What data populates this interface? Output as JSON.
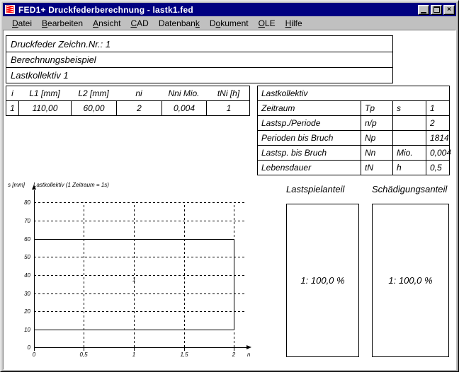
{
  "window": {
    "title": "FED1+   Druckfederberechnung  -  lastk1.fed",
    "close_glyph": "×",
    "icons": {
      "app": "spring-icon",
      "minimize": "minimize-icon",
      "maximize": "maximize-icon",
      "close": "close-icon"
    }
  },
  "menu": {
    "items": [
      {
        "label": "Datei",
        "underline": 0
      },
      {
        "label": "Bearbeiten",
        "underline": 0
      },
      {
        "label": "Ansicht",
        "underline": 0
      },
      {
        "label": "CAD",
        "underline": 0
      },
      {
        "label": "Datenbank",
        "underline": 8
      },
      {
        "label": "Dokument",
        "underline": 1
      },
      {
        "label": "OLE",
        "underline": 0
      },
      {
        "label": "Hilfe",
        "underline": 0
      }
    ]
  },
  "header": {
    "line1": "Druckfeder   Zeichn.Nr.: 1",
    "line2": "Berechnungsbeispiel",
    "line3": "Lastkollektiv 1"
  },
  "load_table": {
    "headers": [
      "i",
      "L1 [mm]",
      "L2 [mm]",
      "ni",
      "Nni Mio.",
      "tNi [h]"
    ],
    "rows": [
      [
        "1",
        "110,00",
        "60,00",
        "2",
        "0,004",
        "1"
      ]
    ]
  },
  "collective_table": {
    "title": "Lastkollektiv",
    "rows": [
      {
        "name": "Zeitraum",
        "symbol": "Tp",
        "unit": "",
        "value": "1"
      },
      {
        "name": "Lastsp./Periode",
        "symbol": "n/p",
        "unit": "",
        "value": "2"
      },
      {
        "name": "Perioden bis Bruch",
        "symbol": "Np",
        "unit": "",
        "value": "1814"
      },
      {
        "name": "Lastsp. bis Bruch",
        "symbol": "Nn",
        "unit": "Mio.",
        "value": "0,004"
      },
      {
        "name": "Lebensdauer",
        "symbol": "tN",
        "unit": "h",
        "value": "0,5"
      }
    ],
    "row1_unit": "s"
  },
  "chart_data": {
    "type": "line",
    "title": "Lastkollektiv (1 Zeitraum = 1s)",
    "xlabel": "n",
    "ylabel": "s [mm]",
    "xlim": [
      0,
      2
    ],
    "ylim": [
      0,
      80
    ],
    "x_ticks": [
      "0",
      "0,5",
      "1",
      "1,5",
      "2"
    ],
    "y_ticks": [
      "80",
      "70",
      "60",
      "50",
      "40",
      "30",
      "20",
      "10",
      "0"
    ],
    "grid": "dashed",
    "legend_position": "none",
    "blocks": [
      {
        "label": "1",
        "n_start": 0,
        "n_end": 2,
        "s_min": 10,
        "s_max": 60,
        "ni": 2
      }
    ]
  },
  "panels": {
    "lastspiel": {
      "title": "Lastspielanteil",
      "value": "1: 100,0 %"
    },
    "schaedigung": {
      "title": "Schädigungsanteil",
      "value": "1: 100,0 %"
    }
  },
  "colors": {
    "titlebar": "#000080",
    "chrome": "#c0c0c0",
    "client": "#ffffff",
    "ink": "#000000",
    "spring_icon_red": "#ff0000"
  }
}
